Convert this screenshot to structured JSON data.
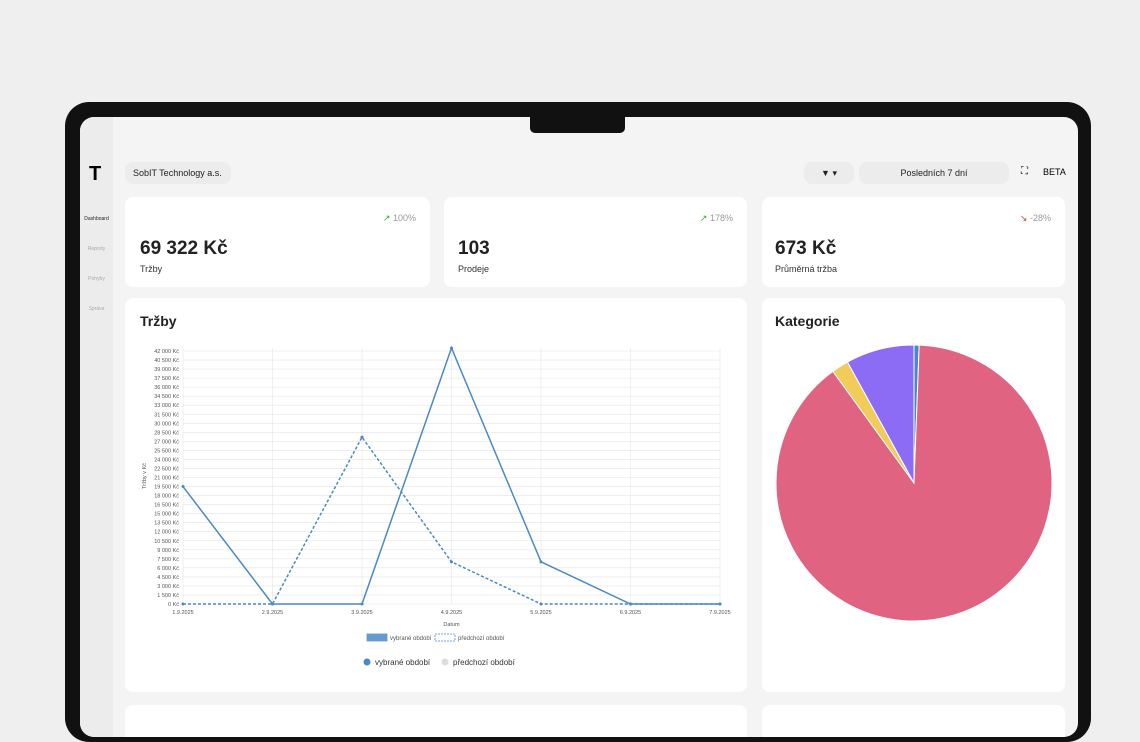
{
  "header": {
    "logo": "T",
    "company": "SobIT Technology a.s.",
    "period": "Posledních 7 dní",
    "badge": "BETA"
  },
  "sidebar": [
    "Dashboard",
    "Reporty",
    "Pohyby",
    "Správa"
  ],
  "kpis": [
    {
      "value": "69 322 Kč",
      "label": "Tržby",
      "change": "100%"
    },
    {
      "value": "103",
      "label": "Prodeje",
      "change": "178%"
    },
    {
      "value": "673 Kč",
      "label": "Průměrná tržba",
      "change": "-28%"
    }
  ],
  "chart_data": [
    {
      "type": "line",
      "title": "Tržby",
      "x_label": "Datum",
      "y_label": "Tržby v Kč",
      "categories": [
        "1.9.2025",
        "2.9.2025",
        "3.9.2025",
        "4.9.2025",
        "5.9.2025",
        "6.9.2025",
        "7.9.2025"
      ],
      "series": [
        {
          "name": "vybrané období",
          "color": "#4a89c8",
          "dashed": false,
          "values": [
            19500,
            0,
            0,
            42500,
            7000,
            0,
            0
          ]
        },
        {
          "name": "předchozí období",
          "color": "#4a89c8",
          "dashed": true,
          "values": [
            0,
            0,
            27700,
            7000,
            0,
            0,
            0
          ]
        }
      ],
      "ylim": [
        0,
        42500
      ],
      "yticks": [
        {
          "value": 0,
          "label": "0 Kč"
        },
        {
          "value": 1500,
          "label": "1 500 Kč"
        },
        {
          "value": 3000,
          "label": "3 000 Kč"
        },
        {
          "value": 4500,
          "label": "4 500 Kč"
        },
        {
          "value": 6000,
          "label": "6 000 Kč"
        },
        {
          "value": 7500,
          "label": "7 500 Kč"
        },
        {
          "value": 9000,
          "label": "9 000 Kč"
        },
        {
          "value": 10500,
          "label": "10 500 Kč"
        },
        {
          "value": 12000,
          "label": "12 000 Kč"
        },
        {
          "value": 13500,
          "label": "13 500 Kč"
        },
        {
          "value": 15000,
          "label": "15 000 Kč"
        },
        {
          "value": 16500,
          "label": "16 500 Kč"
        },
        {
          "value": 18000,
          "label": "18 000 Kč"
        },
        {
          "value": 19500,
          "label": "19 500 Kč"
        },
        {
          "value": 21000,
          "label": "21 000 Kč"
        },
        {
          "value": 22500,
          "label": "22 500 Kč"
        },
        {
          "value": 24000,
          "label": "24 000 Kč"
        },
        {
          "value": 25500,
          "label": "25 500 Kč"
        },
        {
          "value": 27000,
          "label": "27 000 Kč"
        },
        {
          "value": 28500,
          "label": "28 500 Kč"
        },
        {
          "value": 30000,
          "label": "30 000 Kč"
        },
        {
          "value": 31500,
          "label": "31 500 Kč"
        },
        {
          "value": 33000,
          "label": "33 000 Kč"
        },
        {
          "value": 34500,
          "label": "34 500 Kč"
        },
        {
          "value": 36000,
          "label": "36 000 Kč"
        },
        {
          "value": 37500,
          "label": "37 500 Kč"
        },
        {
          "value": 39000,
          "label": "39 000 Kč"
        },
        {
          "value": 40500,
          "label": "40 500 Kč"
        },
        {
          "value": 42000,
          "label": "42 000 Kč"
        }
      ],
      "grid": true
    },
    {
      "type": "pie",
      "title": "Kategorie",
      "values": [
        0.6,
        89.4,
        2,
        8
      ],
      "colors": [
        "#4a89c8",
        "#e06482",
        "#f2cc5a",
        "#8c6cf4"
      ]
    }
  ]
}
